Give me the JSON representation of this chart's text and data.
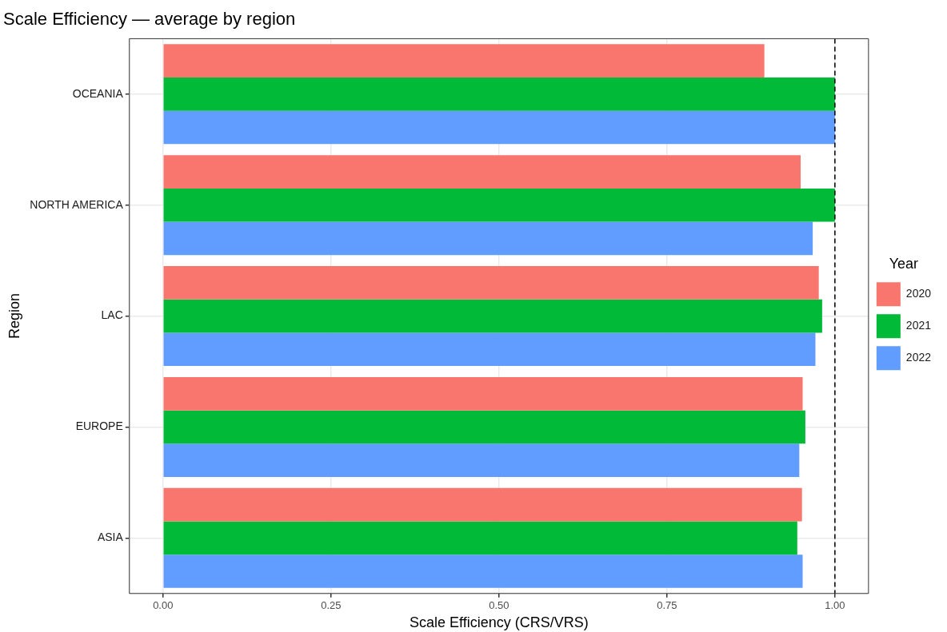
{
  "chart_data": {
    "type": "bar",
    "orientation": "horizontal",
    "title": "Scale Efficiency — average by region",
    "xlabel": "Scale Efficiency (CRS/VRS)",
    "ylabel": "Region",
    "legend_title": "Year",
    "categories": [
      "OCEANIA",
      "NORTH AMERICA",
      "LAC",
      "EUROPE",
      "ASIA"
    ],
    "series": [
      {
        "name": "2020",
        "color": "#f8766d",
        "values": [
          0.895,
          0.949,
          0.976,
          0.952,
          0.951
        ]
      },
      {
        "name": "2021",
        "color": "#00ba38",
        "values": [
          1.0,
          1.0,
          0.981,
          0.956,
          0.944
        ]
      },
      {
        "name": "2022",
        "color": "#619cff",
        "values": [
          1.0,
          0.967,
          0.971,
          0.947,
          0.952
        ]
      }
    ],
    "xlim": [
      -0.05,
      1.05
    ],
    "xticks": [
      {
        "value": 0,
        "label": "0.00"
      },
      {
        "value": 0.25,
        "label": "0.25"
      },
      {
        "value": 0.5,
        "label": "0.50"
      },
      {
        "value": 0.75,
        "label": "0.75"
      },
      {
        "value": 1,
        "label": "1.00"
      }
    ],
    "ref_lines": [
      {
        "axis": "x",
        "value": 1,
        "line_style": "dashed",
        "color": "#000000"
      }
    ],
    "grid": true,
    "legend": "right"
  }
}
